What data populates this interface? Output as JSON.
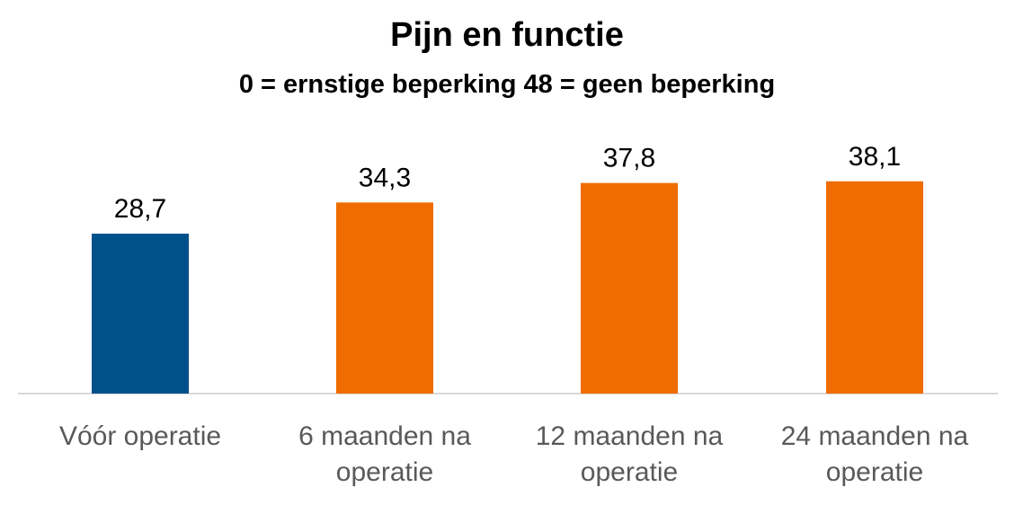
{
  "chart_data": {
    "type": "bar",
    "title": "Pijn en functie",
    "subtitle": "0 = ernstige beperking  48 = geen beperking",
    "categories": [
      "Vóór operatie",
      "6 maanden na operatie",
      "12 maanden na operatie",
      "24 maanden na operatie"
    ],
    "category_lines": [
      [
        "Vóór operatie"
      ],
      [
        "6 maanden na",
        "operatie"
      ],
      [
        "12 maanden na",
        "operatie"
      ],
      [
        "24 maanden na",
        "operatie"
      ]
    ],
    "values": [
      28.7,
      34.3,
      37.8,
      38.1
    ],
    "value_labels": [
      "28,7",
      "34,3",
      "37,8",
      "38,1"
    ],
    "colors": [
      "#00508A",
      "#EF6C00",
      "#EF6C00",
      "#EF6C00"
    ],
    "ylim": [
      0,
      48
    ],
    "grid": false,
    "legend": "none"
  }
}
